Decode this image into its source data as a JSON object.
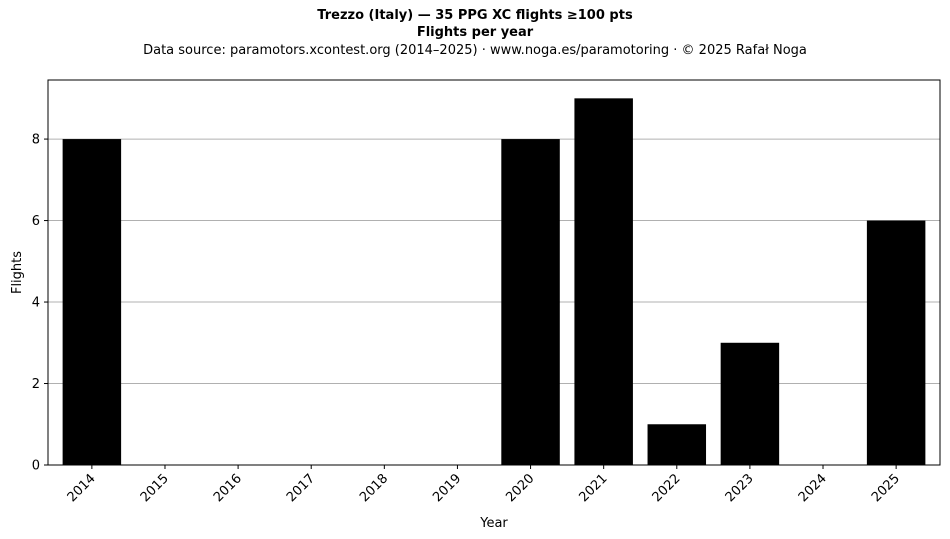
{
  "chart_data": {
    "type": "bar",
    "title": "Trezzo (Italy)  —  35 PPG XC flights ≥100 pts",
    "subtitle": "Flights per year",
    "source": "Data source: paramotors.xcontest.org (2014–2025)  ·  www.noga.es/paramotoring  ·  © 2025 Rafał Noga",
    "xlabel": "Year",
    "ylabel": "Flights",
    "categories": [
      "2014",
      "2015",
      "2016",
      "2017",
      "2018",
      "2019",
      "2020",
      "2021",
      "2022",
      "2023",
      "2024",
      "2025"
    ],
    "values": [
      8,
      0,
      0,
      0,
      0,
      0,
      8,
      9,
      1,
      3,
      0,
      6
    ],
    "yticks": [
      0,
      2,
      4,
      6,
      8
    ],
    "ylim": [
      0,
      9.45
    ],
    "grid": "y",
    "bar_color": "#000000",
    "grid_color": "#b0b0b0"
  }
}
